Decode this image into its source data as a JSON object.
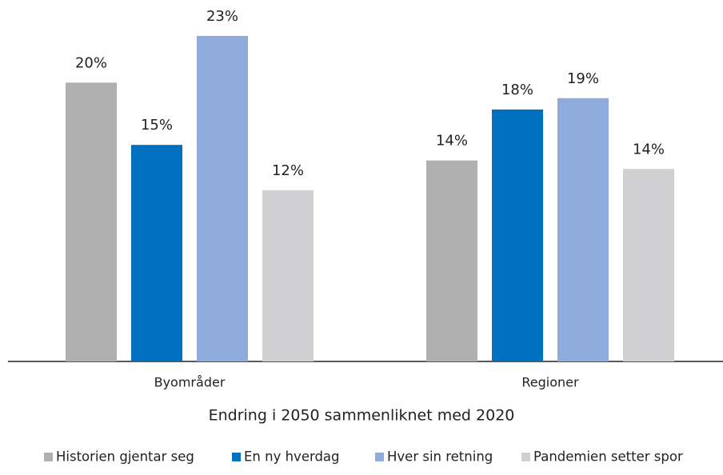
{
  "chart_data": {
    "type": "bar",
    "categories": [
      "Byområder",
      "Regioner"
    ],
    "x_label": "Endring i 2050 sammenliknet med 2020",
    "series": [
      {
        "name": "Historien gjentar seg",
        "color": "#b0b0b0",
        "values": [
          19.7,
          14.2
        ],
        "value_labels": [
          "20%",
          "14%"
        ]
      },
      {
        "name": "En ny hverdag",
        "color": "#0070c0",
        "values": [
          15.3,
          17.8
        ],
        "value_labels": [
          "15%",
          "18%"
        ]
      },
      {
        "name": "Hver sin retning",
        "color": "#8faadc",
        "values": [
          23,
          18.6
        ],
        "value_labels": [
          "23%",
          "19%"
        ]
      },
      {
        "name": "Pandemien setter spor",
        "color": "#d0d0d2",
        "values": [
          12.1,
          13.6
        ],
        "value_labels": [
          "12%",
          "14%"
        ]
      }
    ],
    "ylim": [
      0,
      25
    ],
    "legend": "bottom"
  }
}
